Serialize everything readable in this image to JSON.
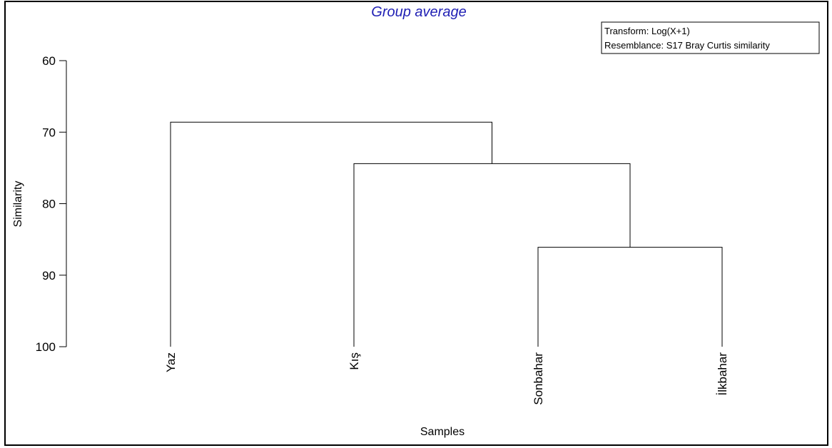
{
  "chart_data": {
    "type": "dendrogram",
    "title": "Group average",
    "xlabel": "Samples",
    "ylabel": "Similarity",
    "ylim": [
      60,
      100
    ],
    "y_ticks": [
      60,
      70,
      80,
      90,
      100
    ],
    "y_tick_labels": [
      "60",
      "70",
      "80",
      "90",
      "100"
    ],
    "leaves": [
      "Yaz",
      "Kış",
      "Sonbahar",
      "İlkbahar"
    ],
    "merges": [
      {
        "left": 2,
        "right": 3,
        "similarity": 86.1
      },
      {
        "left": 1,
        "right": 4,
        "similarity": 74.4
      },
      {
        "left": 0,
        "right": 5,
        "similarity": 68.6
      }
    ],
    "legend": {
      "position": "top-right",
      "lines": [
        "Transform: Log(X+1)",
        "Resemblance: S17 Bray Curtis similarity"
      ]
    },
    "colors": {
      "title": "#1f1fb4",
      "line": "#000000"
    }
  }
}
